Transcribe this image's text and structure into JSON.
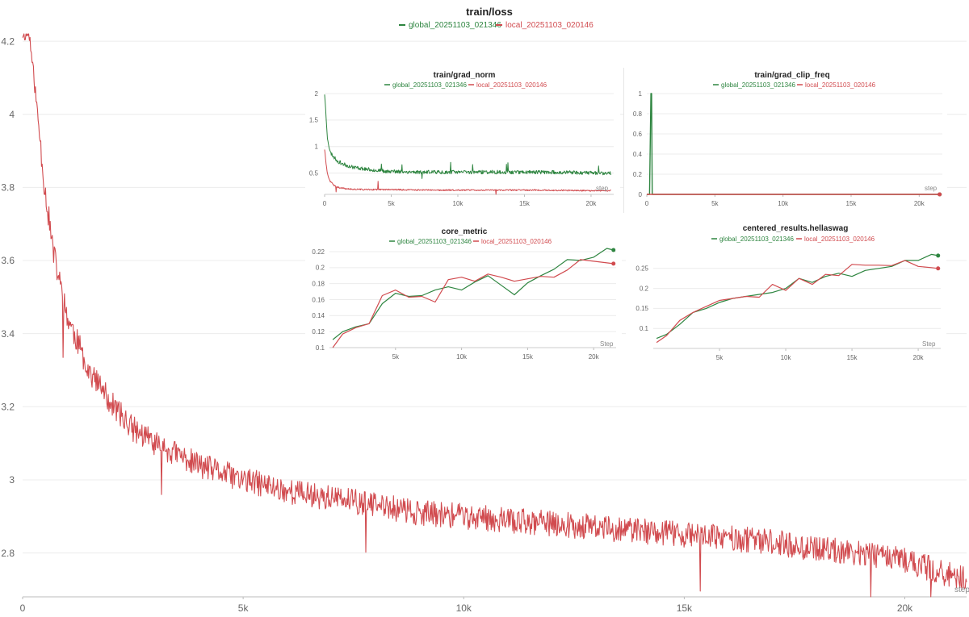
{
  "colors": {
    "global": "#2e8540",
    "local": "#d14b4f",
    "grid": "#ececec",
    "axis": "#666666"
  },
  "charts": {
    "main": {
      "title": "train/loss",
      "legend": [
        "global_20251103_021346",
        "local_20251103_020146"
      ],
      "x_ticks": [
        "0",
        "5k",
        "10k",
        "15k",
        "20k"
      ],
      "y_ticks": [
        "4.2",
        "4",
        "3.8",
        "3.6",
        "3.4",
        "3.2",
        "3",
        "2.8"
      ],
      "x_axis_label": "step"
    },
    "grad_norm": {
      "title": "train/grad_norm",
      "legend": [
        "global_20251103_021346",
        "local_20251103_020146"
      ],
      "x_ticks": [
        "0",
        "5k",
        "10k",
        "15k",
        "20k"
      ],
      "y_ticks": [
        "2",
        "1.5",
        "1",
        "0.5"
      ],
      "x_axis_label": "step"
    },
    "grad_clip_freq": {
      "title": "train/grad_clip_freq",
      "legend": [
        "global_20251103_021346",
        "local_20251103_020146"
      ],
      "x_ticks": [
        "0",
        "5k",
        "10k",
        "15k",
        "20k"
      ],
      "y_ticks": [
        "1",
        "0.8",
        "0.6",
        "0.4",
        "0.2",
        "0"
      ],
      "x_axis_label": "step"
    },
    "core_metric": {
      "title": "core_metric",
      "legend": [
        "global_20251103_021346",
        "local_20251103_020146"
      ],
      "x_ticks": [
        "5k",
        "10k",
        "15k",
        "20k"
      ],
      "y_ticks": [
        "0.22",
        "0.2",
        "0.18",
        "0.16",
        "0.14",
        "0.12",
        "0.1"
      ],
      "x_axis_label": "Step"
    },
    "hellaswag": {
      "title": "centered_results.hellaswag",
      "legend": [
        "global_20251103_021346",
        "local_20251103_020146"
      ],
      "x_ticks": [
        "5k",
        "10k",
        "15k",
        "20k"
      ],
      "y_ticks": [
        "0.25",
        "0.2",
        "0.15",
        "0.1"
      ],
      "x_axis_label": "Step"
    }
  },
  "chart_data": [
    {
      "type": "line",
      "title": "train/loss",
      "xlabel": "step",
      "xlim": [
        0,
        21400
      ],
      "ylim": [
        2.68,
        4.22
      ],
      "series": [
        {
          "name": "local_20251103_020146",
          "x": [
            0,
            150,
            300,
            500,
            700,
            1000,
            1500,
            2000,
            2500,
            3000,
            4000,
            5000,
            6000,
            7000,
            8000,
            9000,
            10000,
            11000,
            12000,
            13000,
            14000,
            15000,
            16000,
            17000,
            18000,
            19000,
            20000,
            21000,
            21400
          ],
          "y": [
            4.22,
            4.22,
            4.05,
            3.8,
            3.62,
            3.45,
            3.3,
            3.21,
            3.14,
            3.1,
            3.04,
            3.0,
            2.97,
            2.95,
            2.93,
            2.91,
            2.9,
            2.89,
            2.88,
            2.87,
            2.86,
            2.85,
            2.84,
            2.83,
            2.81,
            2.8,
            2.78,
            2.74,
            2.73
          ]
        }
      ]
    },
    {
      "type": "line",
      "title": "train/grad_norm",
      "xlabel": "step",
      "xlim": [
        0,
        21700
      ],
      "ylim": [
        0.1,
        2.0
      ],
      "series": [
        {
          "name": "global_20251103_021346",
          "x": [
            0,
            100,
            200,
            400,
            700,
            1000,
            1500,
            2000,
            3000,
            4000,
            5000,
            7000,
            10000,
            13000,
            16000,
            19000,
            21000,
            21500
          ],
          "y": [
            2.0,
            1.6,
            1.2,
            0.9,
            0.8,
            0.72,
            0.66,
            0.62,
            0.58,
            0.55,
            0.53,
            0.52,
            0.52,
            0.52,
            0.52,
            0.51,
            0.5,
            0.5
          ]
        },
        {
          "name": "local_20251103_020146",
          "x": [
            0,
            100,
            200,
            400,
            700,
            1000,
            1500,
            2000,
            3000,
            5000,
            8000,
            12000,
            16000,
            20000,
            21500
          ],
          "y": [
            0.95,
            0.7,
            0.5,
            0.35,
            0.27,
            0.23,
            0.21,
            0.2,
            0.19,
            0.19,
            0.18,
            0.18,
            0.18,
            0.17,
            0.17
          ]
        }
      ]
    },
    {
      "type": "line",
      "title": "train/grad_clip_freq",
      "xlabel": "step",
      "xlim": [
        0,
        21700
      ],
      "ylim": [
        0,
        1
      ],
      "series": [
        {
          "name": "global_20251103_021346",
          "x": [
            0,
            200,
            300,
            350,
            400,
            21500
          ],
          "y": [
            0,
            0,
            1,
            1,
            0,
            0
          ]
        },
        {
          "name": "local_20251103_020146",
          "x": [
            0,
            21500
          ],
          "y": [
            0,
            0
          ]
        }
      ]
    },
    {
      "type": "line",
      "title": "core_metric",
      "xlabel": "Step",
      "xlim": [
        0,
        21700
      ],
      "ylim": [
        0.1,
        0.22
      ],
      "series": [
        {
          "name": "global_20251103_021346",
          "x": [
            250,
            1000,
            2000,
            3000,
            4000,
            5000,
            6000,
            7000,
            8000,
            9000,
            10000,
            11000,
            12000,
            13000,
            14000,
            15000,
            16000,
            17000,
            18000,
            19000,
            20000,
            21000,
            21500
          ],
          "y": [
            0.11,
            0.12,
            0.126,
            0.13,
            0.155,
            0.168,
            0.164,
            0.165,
            0.172,
            0.176,
            0.172,
            0.182,
            0.19,
            0.178,
            0.166,
            0.181,
            0.19,
            0.198,
            0.21,
            0.209,
            0.213,
            0.224,
            0.222
          ]
        },
        {
          "name": "local_20251103_020146",
          "x": [
            250,
            1000,
            2000,
            3000,
            4000,
            5000,
            6000,
            7000,
            8000,
            9000,
            10000,
            11000,
            12000,
            13000,
            14000,
            15000,
            16000,
            17000,
            18000,
            19000,
            20000,
            21000,
            21500
          ],
          "y": [
            0.1,
            0.117,
            0.125,
            0.13,
            0.165,
            0.172,
            0.163,
            0.164,
            0.157,
            0.185,
            0.188,
            0.183,
            0.192,
            0.188,
            0.183,
            0.186,
            0.189,
            0.188,
            0.197,
            0.21,
            0.208,
            0.206,
            0.205
          ]
        }
      ]
    },
    {
      "type": "line",
      "title": "centered_results.hellaswag",
      "xlabel": "Step",
      "xlim": [
        0,
        21700
      ],
      "ylim": [
        0.05,
        0.3
      ],
      "series": [
        {
          "name": "global_20251103_021346",
          "x": [
            250,
            1000,
            2000,
            3000,
            4000,
            5000,
            6000,
            7000,
            8000,
            9000,
            10000,
            11000,
            12000,
            13000,
            14000,
            15000,
            16000,
            17000,
            18000,
            19000,
            20000,
            21000,
            21500
          ],
          "y": [
            0.075,
            0.085,
            0.11,
            0.14,
            0.15,
            0.165,
            0.175,
            0.18,
            0.185,
            0.19,
            0.2,
            0.225,
            0.215,
            0.23,
            0.238,
            0.23,
            0.245,
            0.25,
            0.255,
            0.27,
            0.27,
            0.285,
            0.282
          ]
        },
        {
          "name": "local_20251103_020146",
          "x": [
            250,
            1000,
            2000,
            3000,
            4000,
            5000,
            6000,
            7000,
            8000,
            9000,
            10000,
            11000,
            12000,
            13000,
            14000,
            15000,
            16000,
            17000,
            18000,
            19000,
            20000,
            21000,
            21500
          ],
          "y": [
            0.065,
            0.082,
            0.12,
            0.14,
            0.155,
            0.17,
            0.175,
            0.18,
            0.178,
            0.21,
            0.195,
            0.225,
            0.21,
            0.235,
            0.232,
            0.26,
            0.258,
            0.258,
            0.257,
            0.27,
            0.255,
            0.252,
            0.25
          ]
        }
      ]
    }
  ]
}
